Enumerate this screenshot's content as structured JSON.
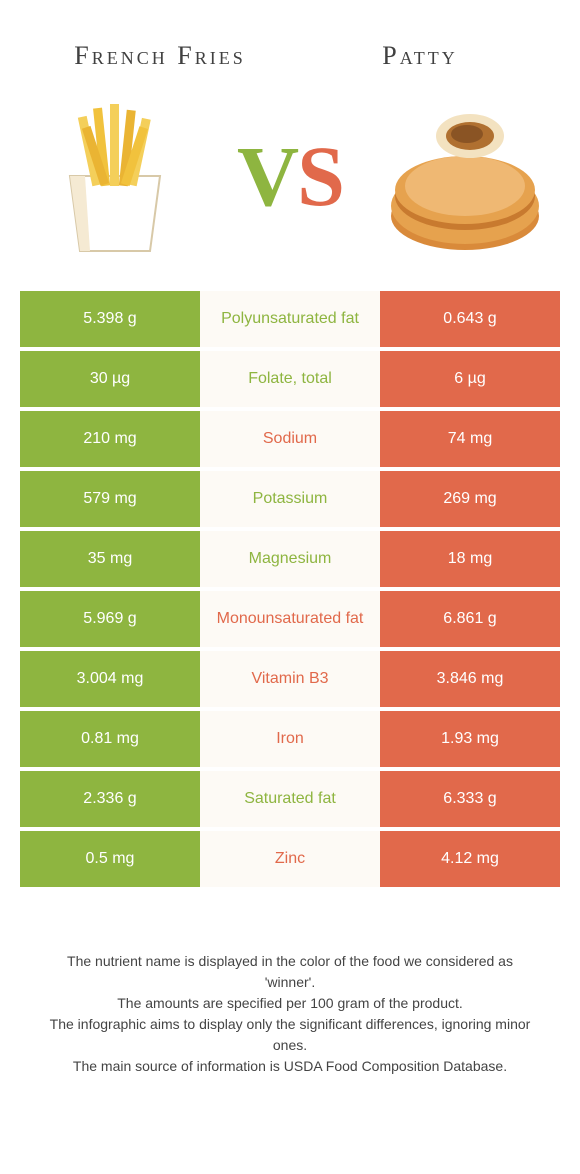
{
  "colors": {
    "left": "#8eb540",
    "right": "#e1694b",
    "mid_bg": "#fdfaf5",
    "text": "#3a3a3a"
  },
  "titles": {
    "left": "French Fries",
    "right": "Patty"
  },
  "vs": {
    "v": "V",
    "s": "S"
  },
  "rows": [
    {
      "left": "5.398 g",
      "label": "Polyunsaturated fat",
      "right": "0.643 g",
      "winner": "left"
    },
    {
      "left": "30 µg",
      "label": "Folate, total",
      "right": "6 µg",
      "winner": "left"
    },
    {
      "left": "210 mg",
      "label": "Sodium",
      "right": "74 mg",
      "winner": "right"
    },
    {
      "left": "579 mg",
      "label": "Potassium",
      "right": "269 mg",
      "winner": "left"
    },
    {
      "left": "35 mg",
      "label": "Magnesium",
      "right": "18 mg",
      "winner": "left"
    },
    {
      "left": "5.969 g",
      "label": "Monounsaturated fat",
      "right": "6.861 g",
      "winner": "right"
    },
    {
      "left": "3.004 mg",
      "label": "Vitamin B3",
      "right": "3.846 mg",
      "winner": "right"
    },
    {
      "left": "0.81 mg",
      "label": "Iron",
      "right": "1.93 mg",
      "winner": "right"
    },
    {
      "left": "2.336 g",
      "label": "Saturated fat",
      "right": "6.333 g",
      "winner": "left"
    },
    {
      "left": "0.5 mg",
      "label": "Zinc",
      "right": "4.12 mg",
      "winner": "right"
    }
  ],
  "footer": {
    "line1": "The nutrient name is displayed in the color of the food we considered as 'winner'.",
    "line2": "The amounts are specified per 100 gram of the product.",
    "line3": "The infographic aims to display only the significant differences, ignoring minor ones.",
    "line4": "The main source of information is USDA Food Composition Database."
  }
}
